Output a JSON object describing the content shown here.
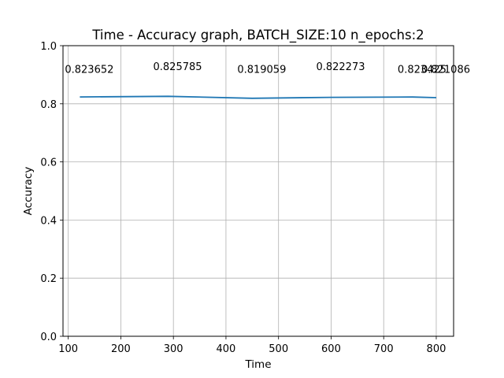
{
  "chart_data": {
    "type": "line",
    "title": "Time - Accuracy graph, BATCH_SIZE:10 n_epochs:2",
    "xlabel": "Time",
    "ylabel": "Accuracy",
    "xlim": [
      90,
      833
    ],
    "ylim": [
      0,
      1
    ],
    "xticks": [
      100,
      200,
      300,
      400,
      500,
      600,
      700,
      800
    ],
    "yticks": [
      0.0,
      0.2,
      0.4,
      0.6,
      0.8,
      1.0
    ],
    "xtick_labels": [
      "100",
      "200",
      "300",
      "400",
      "500",
      "600",
      "700",
      "800"
    ],
    "ytick_labels": [
      "0.0",
      "0.2",
      "0.4",
      "0.6",
      "0.8",
      "1.0"
    ],
    "grid": true,
    "series": [
      {
        "color": "#1f77b4",
        "x": [
          122,
          290,
          450,
          600,
          755,
          800
        ],
        "y": [
          0.823652,
          0.825785,
          0.819059,
          0.822273,
          0.823425,
          0.821086
        ]
      }
    ],
    "annotations": [
      {
        "x": 122,
        "y": 0.92,
        "text": "0.823652"
      },
      {
        "x": 290,
        "y": 0.93,
        "text": "0.825785"
      },
      {
        "x": 450,
        "y": 0.92,
        "text": "0.819059"
      },
      {
        "x": 600,
        "y": 0.93,
        "text": "0.822273"
      },
      {
        "x": 755,
        "y": 0.92,
        "text": "0.823425"
      },
      {
        "x": 800,
        "y": 0.92,
        "text": "0.821086"
      }
    ]
  }
}
